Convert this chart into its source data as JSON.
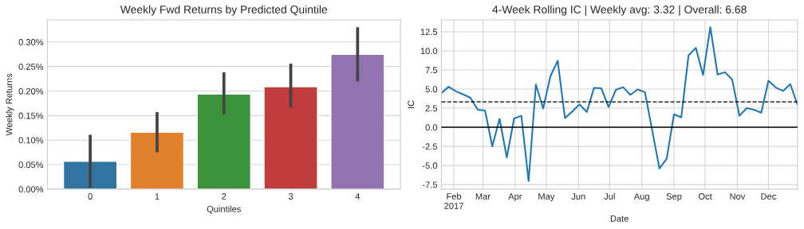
{
  "chart_data": [
    {
      "type": "bar",
      "title": "Weekly Fwd Returns by Predicted Quintile",
      "xlabel": "Quintiles",
      "ylabel": "Weekly Returns",
      "categories": [
        "0",
        "1",
        "2",
        "3",
        "4"
      ],
      "values": [
        0.057,
        0.116,
        0.194,
        0.209,
        0.275
      ],
      "colors": [
        "#3274a1",
        "#e1812c",
        "#3a923a",
        "#c03d3e",
        "#9372b2"
      ],
      "errors": [
        [
          0.003,
          0.111
        ],
        [
          0.075,
          0.157
        ],
        [
          0.153,
          0.238
        ],
        [
          0.166,
          0.256
        ],
        [
          0.22,
          0.33
        ]
      ],
      "ylim": [
        0,
        0.345
      ],
      "yticks": [
        {
          "value": 0,
          "label": "0.00%"
        },
        {
          "value": 0.05,
          "label": "0.05%"
        },
        {
          "value": 0.1,
          "label": "0.10%"
        },
        {
          "value": 0.15,
          "label": "0.15%"
        },
        {
          "value": 0.2,
          "label": "0.20%"
        },
        {
          "value": 0.25,
          "label": "0.25%"
        },
        {
          "value": 0.3,
          "label": "0.30%"
        }
      ],
      "grid": "y"
    },
    {
      "type": "line",
      "title": "4-Week Rolling IC | Weekly avg: 3.32 | Overall: 6.68",
      "xlabel": "Date",
      "ylabel": "IC",
      "x": [
        "2017-01-20",
        "2017-01-27",
        "2017-02-03",
        "2017-02-10",
        "2017-02-17",
        "2017-02-24",
        "2017-03-03",
        "2017-03-10",
        "2017-03-17",
        "2017-03-24",
        "2017-03-31",
        "2017-04-07",
        "2017-04-14",
        "2017-04-21",
        "2017-04-28",
        "2017-05-05",
        "2017-05-12",
        "2017-05-19",
        "2017-05-26",
        "2017-06-02",
        "2017-06-09",
        "2017-06-16",
        "2017-06-23",
        "2017-06-30",
        "2017-07-07",
        "2017-07-14",
        "2017-07-21",
        "2017-07-28",
        "2017-08-04",
        "2017-08-11",
        "2017-08-18",
        "2017-08-25",
        "2017-09-01",
        "2017-09-08",
        "2017-09-15",
        "2017-09-22",
        "2017-09-29",
        "2017-10-06",
        "2017-10-13",
        "2017-10-20",
        "2017-10-27",
        "2017-11-03",
        "2017-11-10",
        "2017-11-17",
        "2017-11-24",
        "2017-12-01",
        "2017-12-08",
        "2017-12-15",
        "2017-12-22",
        "2017-12-29"
      ],
      "series": [
        {
          "color": "#1f77b4",
          "values": [
            4.47,
            5.3,
            4.7,
            4.3,
            3.85,
            2.3,
            2.2,
            -2.5,
            1.1,
            -3.95,
            1.15,
            1.5,
            -7.05,
            5.6,
            2.45,
            6.7,
            8.7,
            1.2,
            2.05,
            3.0,
            2.0,
            5.15,
            5.1,
            2.65,
            4.9,
            5.25,
            4.25,
            4.95,
            4.6,
            -0.4,
            -5.4,
            -4.1,
            1.7,
            1.3,
            9.4,
            10.4,
            6.85,
            13.1,
            6.9,
            7.2,
            6.25,
            1.5,
            2.5,
            2.3,
            1.9,
            6.1,
            5.2,
            4.75,
            5.65,
            2.9
          ]
        }
      ],
      "xlim": [
        "2017-01-20",
        "2017-12-29"
      ],
      "xticks": [
        {
          "value": "2017-02-01",
          "label": "Feb\n2017"
        },
        {
          "value": "2017-03-01",
          "label": "Mar"
        },
        {
          "value": "2017-04-01",
          "label": "Apr"
        },
        {
          "value": "2017-05-01",
          "label": "May"
        },
        {
          "value": "2017-06-01",
          "label": "Jun"
        },
        {
          "value": "2017-07-01",
          "label": "Jul"
        },
        {
          "value": "2017-08-01",
          "label": "Aug"
        },
        {
          "value": "2017-09-01",
          "label": "Sep"
        },
        {
          "value": "2017-10-01",
          "label": "Oct"
        },
        {
          "value": "2017-11-01",
          "label": "Nov"
        },
        {
          "value": "2017-12-01",
          "label": "Dec"
        }
      ],
      "ylim": [
        -8.1,
        14.05
      ],
      "yticks": [
        -7.5,
        {
          "value": -5,
          "label": "-5.0"
        },
        -2.5,
        {
          "value": 0,
          "label": "0.0"
        },
        2.5,
        {
          "value": 5,
          "label": "5.0"
        },
        7.5,
        {
          "value": 10,
          "label": "10.0"
        },
        12.5
      ],
      "ref_lines": [
        {
          "axis": "y",
          "value": 3.32,
          "color": "#000000",
          "line_style": "dashed"
        },
        {
          "axis": "y",
          "value": 0,
          "color": "#000000",
          "line_style": "solid"
        }
      ],
      "grid": true
    }
  ]
}
